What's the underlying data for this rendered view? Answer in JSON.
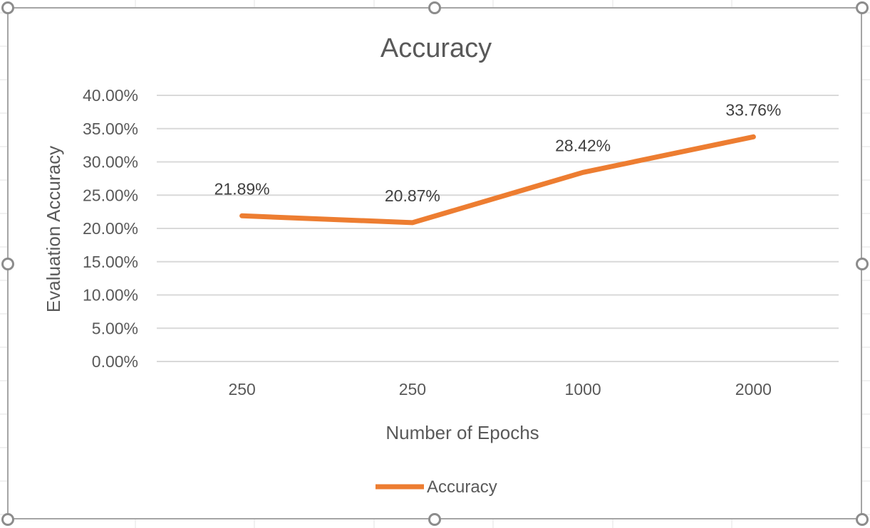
{
  "chart_data": {
    "type": "line",
    "title": "Accuracy",
    "xlabel": "Number of Epochs",
    "ylabel": "Evaluation Accuracy",
    "categories": [
      "250",
      "250",
      "1000",
      "2000"
    ],
    "series": [
      {
        "name": "Accuracy",
        "values": [
          21.89,
          20.87,
          28.42,
          33.76
        ],
        "color": "#ed7d31"
      }
    ],
    "data_labels": [
      "21.89%",
      "20.87%",
      "28.42%",
      "33.76%"
    ],
    "y_ticks": [
      "0.00%",
      "5.00%",
      "10.00%",
      "15.00%",
      "20.00%",
      "25.00%",
      "30.00%",
      "35.00%",
      "40.00%"
    ],
    "ylim": [
      0,
      40
    ],
    "y_tick_step": 5,
    "grid": true,
    "legend_position": "bottom",
    "colors": {
      "gridline": "#d9d9d9",
      "text": "#595959",
      "frame": "#a5a5a5"
    }
  }
}
